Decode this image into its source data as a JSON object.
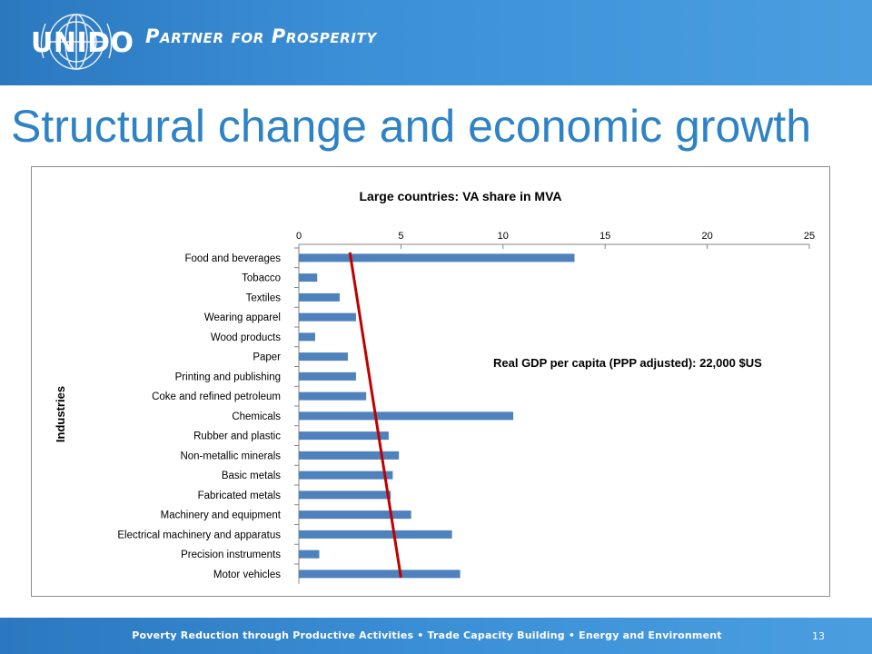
{
  "header": {
    "logo_text": "UNIDO",
    "tagline": "Partner for Prosperity",
    "background_color": "#3b8fd6",
    "logo_icon": "un-emblem-icon"
  },
  "slide": {
    "title": "Structural change and economic growth",
    "title_color": "#2e83c6",
    "page_number": "13"
  },
  "footer": {
    "text": "Poverty Reduction through Productive Activities  •  Trade Capacity Building  •  Energy and Environment"
  },
  "chart_data": {
    "type": "bar",
    "orientation": "horizontal",
    "title": "Large countries: VA share in MVA",
    "ylabel": "Industries",
    "xlabel": "",
    "x_axis_position": "top",
    "xlim": [
      0,
      25
    ],
    "xticks": [
      "0",
      "5",
      "10",
      "15",
      "20",
      "25"
    ],
    "grid": false,
    "bar_color": "#4f81bd",
    "trend_color": "#c00000",
    "categories": [
      "Food and beverages",
      "Tobacco",
      "Textiles",
      "Wearing apparel",
      "Wood products",
      "Paper",
      "Printing and publishing",
      "Coke and refined petroleum",
      "Chemicals",
      "Rubber and plastic",
      "Non-metallic minerals",
      "Basic metals",
      "Fabricated metals",
      "Machinery and equipment",
      "Electrical machinery and apparatus",
      "Precision instruments",
      "Motor vehicles"
    ],
    "values": [
      13.5,
      0.9,
      2.0,
      2.8,
      0.8,
      2.4,
      2.8,
      3.3,
      10.5,
      4.4,
      4.9,
      4.6,
      4.5,
      5.5,
      7.5,
      1.0,
      7.9
    ],
    "trend_line": {
      "from": 2.5,
      "to": 5.0
    },
    "annotation": "Real GDP per capita (PPP adjusted): 22,000 $US"
  }
}
